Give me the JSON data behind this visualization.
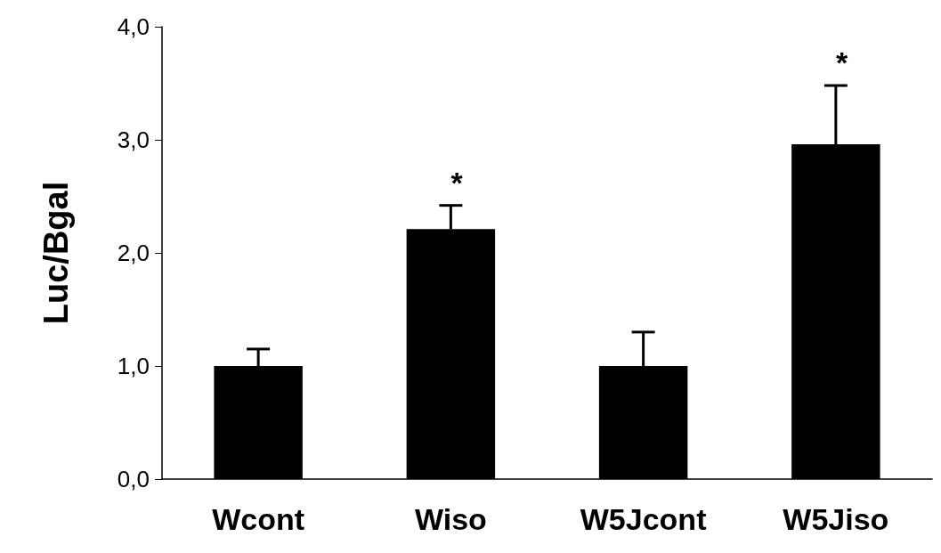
{
  "chart_data": {
    "type": "bar",
    "ylabel": "Luc/Bgal",
    "categories": [
      "Wcont",
      "Wiso",
      "W5Jcont",
      "W5Jiso"
    ],
    "values": [
      1.0,
      2.21,
      1.0,
      2.96
    ],
    "color": "#000000",
    "errors": [
      [
        1.0,
        1.15
      ],
      [
        2.21,
        2.42
      ],
      [
        1.0,
        1.3
      ],
      [
        2.96,
        3.48
      ]
    ],
    "value_labels": [
      null,
      "*",
      null,
      "*"
    ],
    "ylim": [
      0,
      4
    ],
    "yticks": [
      {
        "value": 0,
        "label": "0,0"
      },
      {
        "value": 1,
        "label": "1,0"
      },
      {
        "value": 2,
        "label": "2,0"
      },
      {
        "value": 3,
        "label": "3,0"
      },
      {
        "value": 4,
        "label": "4,0"
      }
    ],
    "grid": false
  }
}
